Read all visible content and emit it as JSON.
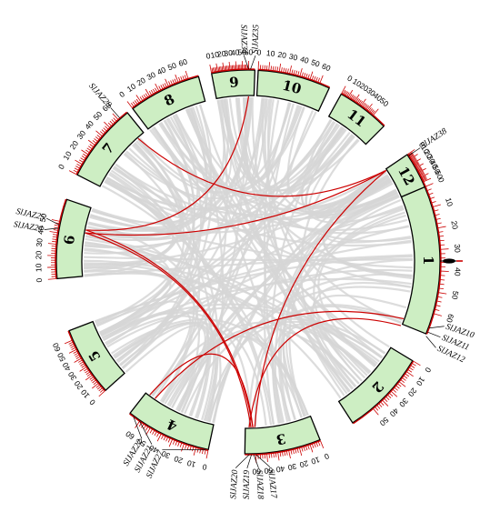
{
  "colors": {
    "segment_fill": "#cdeec3",
    "scale": "#cc0000",
    "background_links": "#d6d6d6",
    "highlight_links": "#cc0000"
  },
  "chromosomes": [
    {
      "label": "1",
      "tick_labels": [
        "0",
        "10",
        "20",
        "30",
        "40",
        "50",
        "60"
      ]
    },
    {
      "label": "2",
      "tick_labels": [
        "0",
        "10",
        "20",
        "30",
        "40",
        "50"
      ]
    },
    {
      "label": "3",
      "tick_labels": [
        "0",
        "10",
        "20",
        "30",
        "40",
        "50",
        "60"
      ]
    },
    {
      "label": "4",
      "tick_labels": [
        "0",
        "10",
        "20",
        "30",
        "40",
        "50",
        "60"
      ]
    },
    {
      "label": "5",
      "tick_labels": [
        "0",
        "10",
        "20",
        "30",
        "40",
        "50",
        "60"
      ]
    },
    {
      "label": "6",
      "tick_labels": [
        "0",
        "10",
        "20",
        "30",
        "40",
        "50"
      ]
    },
    {
      "label": "7",
      "tick_labels": [
        "0",
        "10",
        "20",
        "30",
        "40",
        "50",
        "60"
      ]
    },
    {
      "label": "8",
      "tick_labels": [
        "0",
        "10",
        "20",
        "30",
        "40",
        "50",
        "60"
      ]
    },
    {
      "label": "9",
      "tick_labels": [
        "0",
        "10",
        "20",
        "30",
        "40",
        "50",
        "60"
      ]
    },
    {
      "label": "10",
      "tick_labels": [
        "0",
        "10",
        "20",
        "30",
        "40",
        "50",
        "60"
      ]
    },
    {
      "label": "11",
      "tick_labels": [
        "0",
        "10",
        "20",
        "30",
        "40",
        "50"
      ]
    },
    {
      "label": "12",
      "tick_labels": [
        "0",
        "10",
        "20",
        "30",
        "40",
        "50",
        "60"
      ]
    }
  ],
  "genes": [
    {
      "name": "SlJAZ35",
      "chr": "9",
      "pos": 63
    },
    {
      "name": "SlJAZ34",
      "chr": "9",
      "pos": 60
    },
    {
      "name": "SlJAZ38",
      "chr": "12",
      "pos": 3
    },
    {
      "name": "SlJAZ29",
      "chr": "7",
      "pos": 62
    },
    {
      "name": "SlJAZ25",
      "chr": "6",
      "pos": 47
    },
    {
      "name": "SlJAZ24",
      "chr": "6",
      "pos": 44
    },
    {
      "name": "SlJAZ10",
      "chr": "1",
      "pos": 67
    },
    {
      "name": "SlJAZ11",
      "chr": "1",
      "pos": 69
    },
    {
      "name": "SlJAZ12",
      "chr": "1",
      "pos": 71
    },
    {
      "name": "SlJAZ22",
      "chr": "4",
      "pos": 66
    },
    {
      "name": "SlJAZ21",
      "chr": "4",
      "pos": 60
    },
    {
      "name": "SlJAZ27",
      "chr": "4",
      "pos": 2
    },
    {
      "name": "SlJAZ20",
      "chr": "3",
      "pos": 66
    },
    {
      "name": "SlJAZ19",
      "chr": "3",
      "pos": 64
    },
    {
      "name": "SlJAZ18",
      "chr": "3",
      "pos": 62
    },
    {
      "name": "SlJAZ17",
      "chr": "3",
      "pos": 60
    }
  ],
  "highlighted_links": [
    {
      "from": "SlJAZ34",
      "to": "SlJAZ25"
    },
    {
      "from": "SlJAZ29",
      "to": "SlJAZ38"
    },
    {
      "from": "SlJAZ38",
      "to": "SlJAZ17"
    },
    {
      "from": "SlJAZ38",
      "to": "SlJAZ24"
    },
    {
      "from": "SlJAZ25",
      "to": "SlJAZ18"
    },
    {
      "from": "SlJAZ24",
      "to": "SlJAZ19"
    },
    {
      "from": "SlJAZ10",
      "to": "SlJAZ21"
    },
    {
      "from": "SlJAZ12",
      "to": "SlJAZ20"
    },
    {
      "from": "SlJAZ22",
      "to": "SlJAZ18"
    }
  ]
}
